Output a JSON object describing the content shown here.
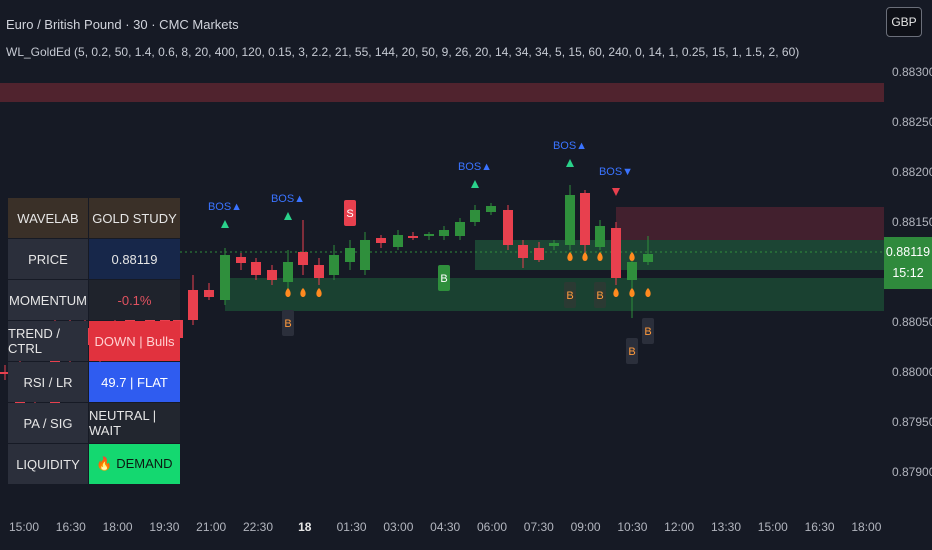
{
  "header": {
    "title": "Euro / British Pound · 30 · CMC Markets",
    "indicator": "WL_GoldEd (5, 0.2, 50, 1.4, 0.6, 8, 20, 400, 120, 0.15, 3, 2.2, 21, 55, 144, 20, 50, 9, 26, 20, 14, 34, 34, 5, 15, 60, 240, 0, 14, 1, 0.25, 15, 1, 1.5, 2, 60)",
    "currency_button": "GBP"
  },
  "y_axis": {
    "labels": [
      "0.88300",
      "0.88250",
      "0.88200",
      "0.88150",
      "0.88050",
      "0.88000",
      "0.87950",
      "0.87900"
    ]
  },
  "x_axis": {
    "labels": [
      "15:00",
      "16:30",
      "18:00",
      "19:30",
      "21:00",
      "22:30",
      "18",
      "01:30",
      "03:00",
      "04:30",
      "06:00",
      "07:30",
      "09:00",
      "10:30",
      "12:00",
      "13:30",
      "15:00",
      "16:30",
      "18:00"
    ]
  },
  "price_tag": {
    "price": "0.88119",
    "countdown": "15:12"
  },
  "markers": {
    "bos_up": "BOS▲",
    "bos_down": "BOS▼",
    "buy": "B",
    "sell": "S"
  },
  "panel": {
    "header_left": "WAVELAB",
    "header_right": "GOLD STUDY",
    "rows": [
      {
        "label": "PRICE",
        "value": "0.88119"
      },
      {
        "label": "MOMENTUM",
        "value": "-0.1%"
      },
      {
        "label": "TREND / CTRL",
        "value": "DOWN | Bulls"
      },
      {
        "label": "RSI / LR",
        "value": "49.7 | FLAT"
      },
      {
        "label": "PA / SIG",
        "value": "NEUTRAL | WAIT"
      },
      {
        "label": "LIQUIDITY",
        "value": "🔥 DEMAND"
      }
    ]
  },
  "colors": {
    "up": "#2f8f3c",
    "down": "#e8404e",
    "bos": "#3a73ff",
    "supply_zone": "#8b2d3a",
    "demand_zone": "#1e5c3a",
    "flame": "#ff8a1f"
  }
}
